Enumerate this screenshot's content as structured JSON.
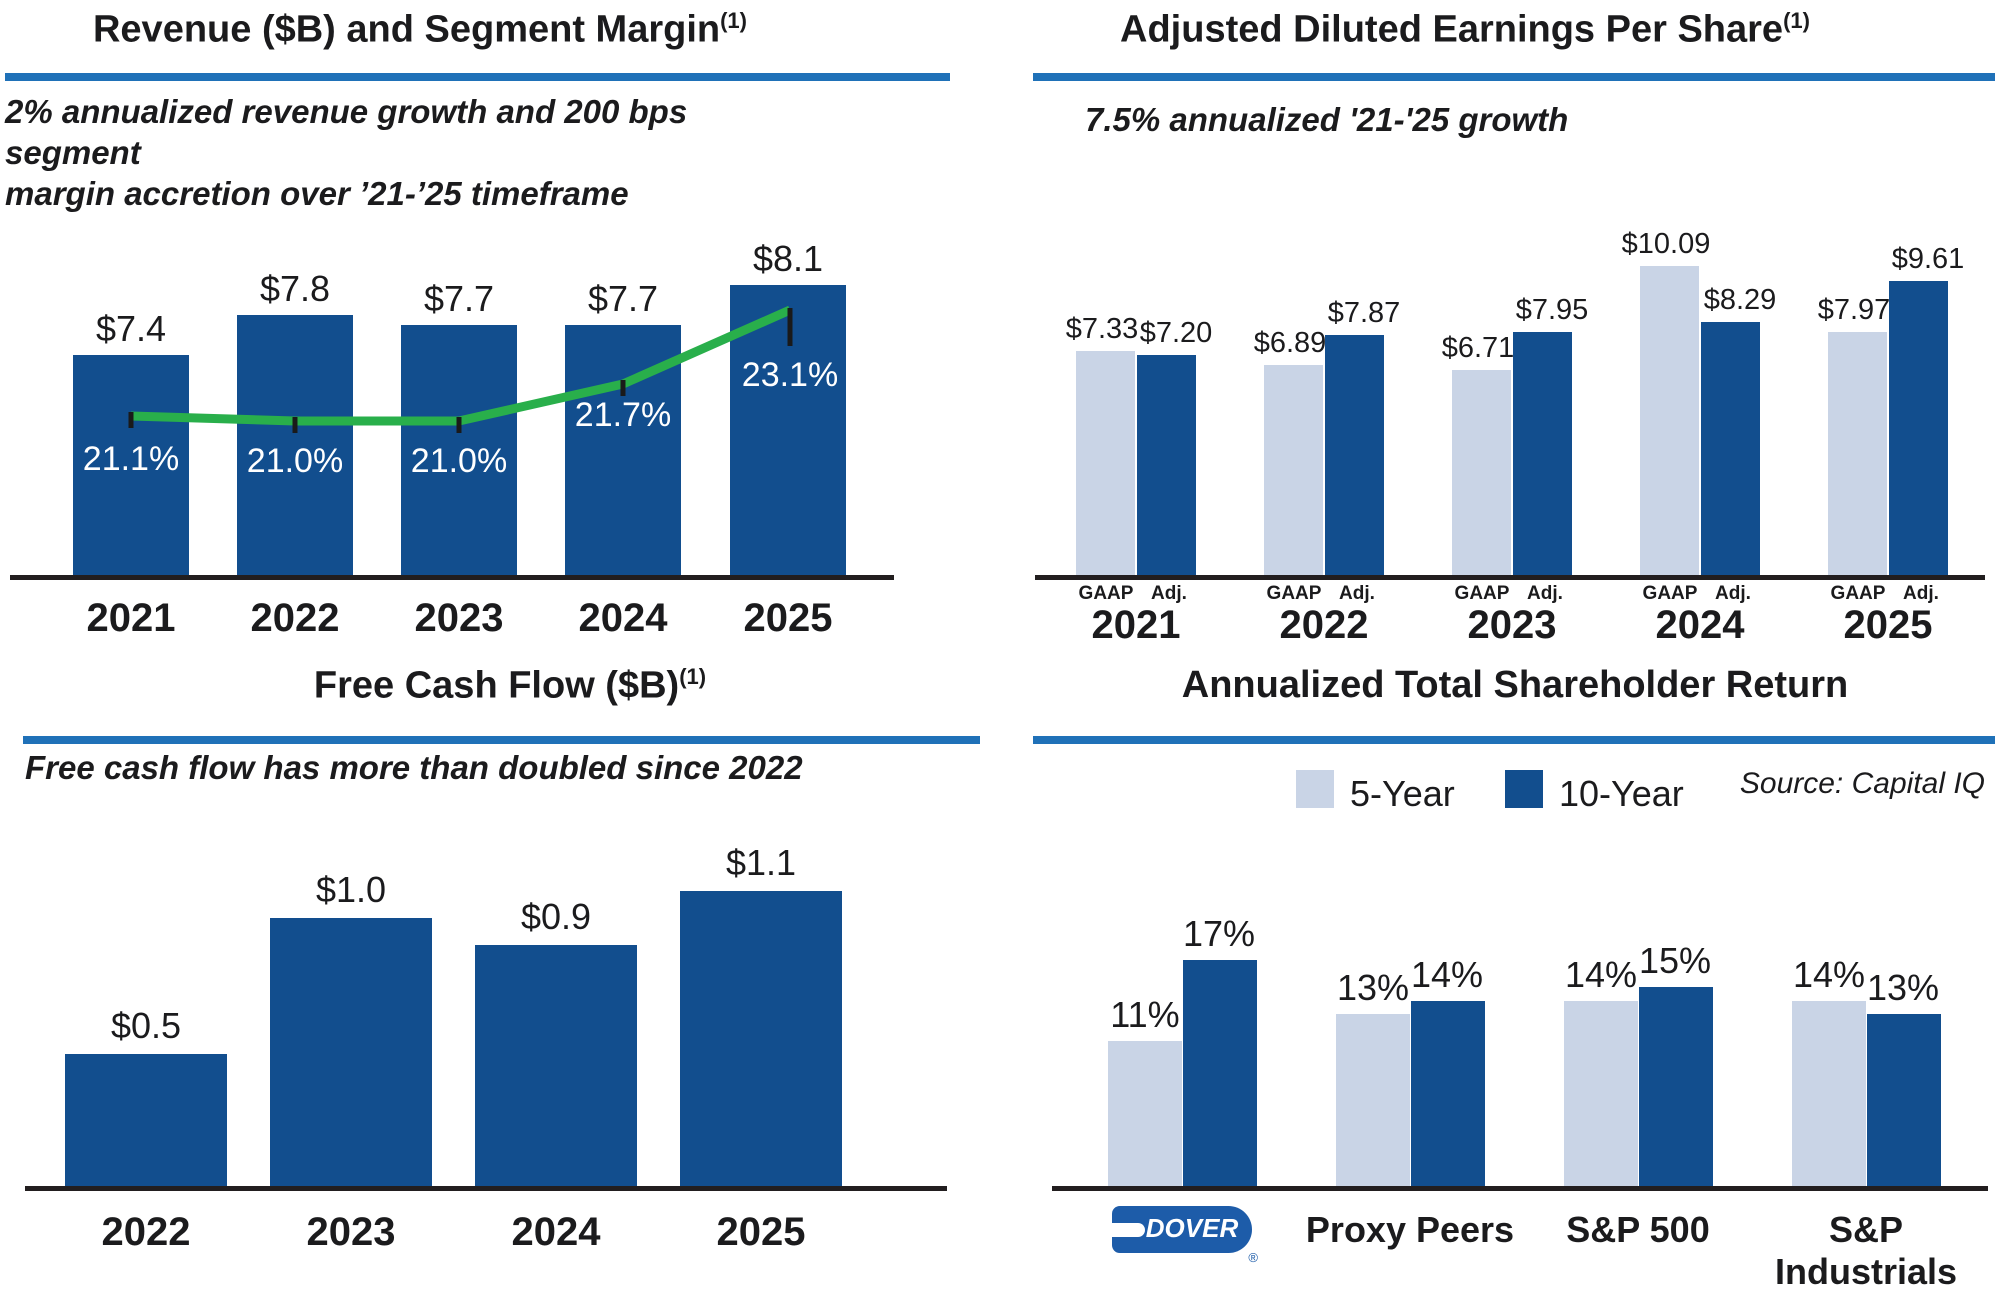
{
  "styles": {
    "dark_blue": "#124E8E",
    "light_blue": "#C9D4E6",
    "divider_blue": "#1F71B8",
    "green": "#29AF4B",
    "axis_black": "#221E1F",
    "dover_logo_blue": "#1D5CA9"
  },
  "chart_data": [
    {
      "id": "revenue_segment_margin",
      "type": "bar+line",
      "title": "Revenue ($B) and Segment Margin",
      "title_superscript": "(1)",
      "subtitle_lines": [
        "2% annualized revenue growth and 200 bps segment",
        "margin accretion over ’21-’25 timeframe"
      ],
      "categories": [
        "2021",
        "2022",
        "2023",
        "2024",
        "2025"
      ],
      "bar_series": {
        "name": "Revenue ($B)",
        "values": [
          7.4,
          7.8,
          7.7,
          7.7,
          8.1
        ],
        "labels": [
          "$7.4",
          "$7.8",
          "$7.7",
          "$7.7",
          "$8.1"
        ],
        "color": "#124E8E"
      },
      "line_series": {
        "name": "Segment Margin",
        "values": [
          21.1,
          21.0,
          21.0,
          21.7,
          23.1
        ],
        "labels": [
          "21.1%",
          "21.0%",
          "21.0%",
          "21.7%",
          "23.1%"
        ],
        "color": "#29AF4B"
      },
      "axis_note": "y-axis truncated, no gridlines, no tick labels"
    },
    {
      "id": "adjusted_diluted_eps",
      "type": "grouped_bar",
      "title": "Adjusted Diluted Earnings Per Share",
      "title_superscript": "(1)",
      "subtitle": "7.5% annualized '21-'25 growth",
      "categories": [
        "2021",
        "2022",
        "2023",
        "2024",
        "2025"
      ],
      "group_sublabels": [
        "GAAP",
        "Adj."
      ],
      "series": [
        {
          "name": "GAAP",
          "values": [
            7.33,
            6.89,
            6.71,
            10.09,
            7.97
          ],
          "labels": [
            "$7.33",
            "$6.89",
            "$6.71",
            "$10.09",
            "$7.97"
          ],
          "color": "#C9D4E6"
        },
        {
          "name": "Adj.",
          "values": [
            7.2,
            7.87,
            7.95,
            8.29,
            9.61
          ],
          "labels": [
            "$7.20",
            "$7.87",
            "$7.95",
            "$8.29",
            "$9.61"
          ],
          "color": "#124E8E"
        }
      ],
      "axis_note": "zero-based, no gridlines"
    },
    {
      "id": "free_cash_flow",
      "type": "bar",
      "title": "Free Cash Flow ($B)",
      "title_superscript": "(1)",
      "subtitle": "Free cash flow has more than doubled since 2022",
      "categories": [
        "2022",
        "2023",
        "2024",
        "2025"
      ],
      "values": [
        0.5,
        1.0,
        0.9,
        1.1
      ],
      "labels": [
        "$0.5",
        "$1.0",
        "$0.9",
        "$1.1"
      ],
      "bar_color": "#124E8E",
      "axis_note": "zero-based, no gridlines"
    },
    {
      "id": "annualized_total_shareholder_return",
      "type": "grouped_bar",
      "title": "Annualized Total Shareholder Return",
      "source": "Source: Capital IQ",
      "logo_text": "DOVER",
      "registered_mark": "®",
      "categories": [
        "DOVER",
        "Proxy Peers",
        "S&P 500",
        "S&P\nIndustrials"
      ],
      "series": [
        {
          "name": "5-Year",
          "values": [
            11,
            13,
            14,
            14
          ],
          "labels": [
            "11%",
            "13%",
            "14%",
            "14%"
          ],
          "color": "#C9D4E6"
        },
        {
          "name": "10-Year",
          "values": [
            17,
            14,
            15,
            13
          ],
          "labels": [
            "17%",
            "14%",
            "15%",
            "13%"
          ],
          "color": "#124E8E"
        }
      ],
      "legend": [
        "5-Year",
        "10-Year"
      ],
      "legend_position": "top",
      "axis_note": "zero-based, no gridlines"
    }
  ]
}
